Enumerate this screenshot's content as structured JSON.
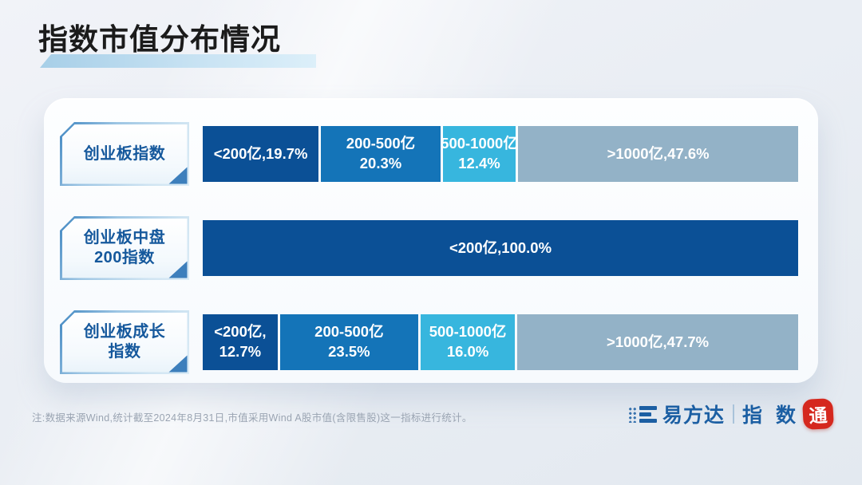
{
  "page": {
    "title": "指数市值分布情况"
  },
  "chart_data": {
    "type": "bar",
    "subtype": "horizontal-stacked-percent",
    "title": "指数市值分布情况",
    "unit": "%",
    "categories": [
      "<200亿",
      "200-500亿",
      "500-1000亿",
      ">1000亿"
    ],
    "series": [
      {
        "name": "创业板指数",
        "values": [
          19.7,
          20.3,
          12.4,
          47.6
        ]
      },
      {
        "name": "创业板中盘200指数",
        "values": [
          100.0,
          0,
          0,
          0
        ]
      },
      {
        "name": "创业板成长指数",
        "values": [
          12.7,
          23.5,
          16.0,
          47.7
        ]
      }
    ],
    "segment_colors": [
      "#0b5096",
      "#1474b8",
      "#37b6de",
      "#93b2c7"
    ],
    "legend": "none",
    "axes": "none",
    "xlim": [
      0,
      100
    ]
  },
  "rows": [
    {
      "label_lines": [
        "创业板指数"
      ],
      "segments": [
        {
          "lines": [
            "<200亿,19.7%"
          ],
          "value": 19.7,
          "color_index": 0
        },
        {
          "lines": [
            "200-500亿",
            "20.3%"
          ],
          "value": 20.3,
          "color_index": 1
        },
        {
          "lines": [
            "500-1000亿",
            "12.4%"
          ],
          "value": 12.4,
          "color_index": 2
        },
        {
          "lines": [
            ">1000亿,47.6%"
          ],
          "value": 47.6,
          "color_index": 3
        }
      ]
    },
    {
      "label_lines": [
        "创业板中盘",
        "200指数"
      ],
      "segments": [
        {
          "lines": [
            "<200亿,100.0%"
          ],
          "value": 100.0,
          "color_index": 0
        }
      ]
    },
    {
      "label_lines": [
        "创业板成长",
        "指数"
      ],
      "segments": [
        {
          "lines": [
            "<200亿,",
            "12.7%"
          ],
          "value": 12.7,
          "color_index": 0
        },
        {
          "lines": [
            "200-500亿",
            "23.5%"
          ],
          "value": 23.5,
          "color_index": 1
        },
        {
          "lines": [
            "500-1000亿",
            "16.0%"
          ],
          "value": 16.0,
          "color_index": 2
        },
        {
          "lines": [
            ">1000亿,47.7%"
          ],
          "value": 47.7,
          "color_index": 3
        }
      ]
    }
  ],
  "footer": {
    "note": "注:数据来源Wind,统计截至2024年8月31日,市值采用Wind A股市值(含限售股)这一指标进行统计。",
    "logo": {
      "brand": "易方达",
      "product": "指 数",
      "seal": "通"
    }
  },
  "colors": {
    "title_text": "#1b1b1b",
    "title_underline": "#c2e0f2",
    "badge_text": "#15589c",
    "badge_corner": "#3d7fbc",
    "bar_text": "#ffffff",
    "note_text": "#9aa4b2",
    "logo_blue": "#1c5fa3",
    "seal_red": "#d5281e",
    "card_bg": "#fafcfe"
  }
}
